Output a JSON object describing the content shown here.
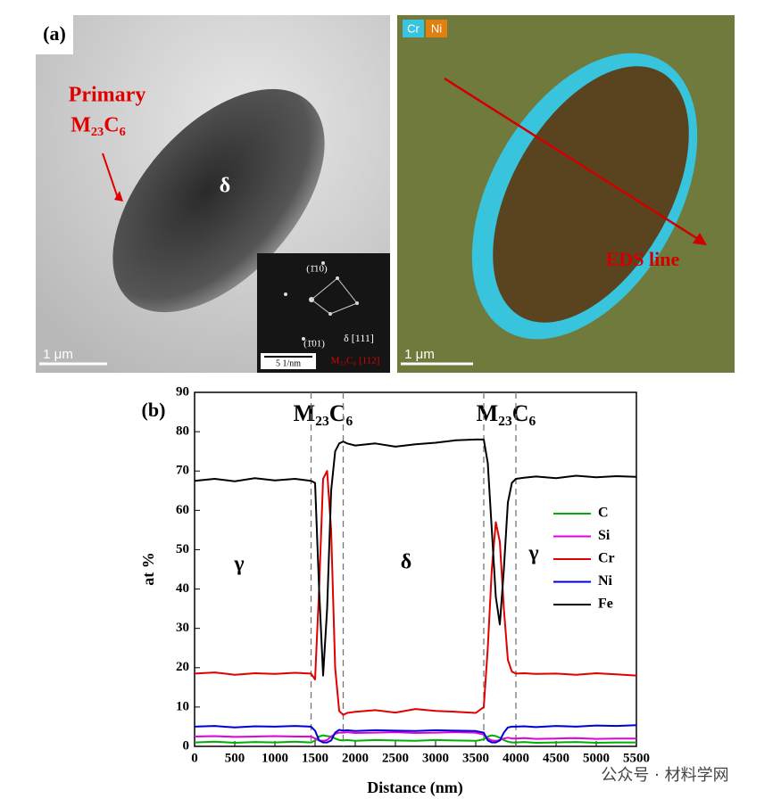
{
  "panel_a": {
    "label": "(a)",
    "left_image": {
      "annotation_line1": "Primary",
      "annotation_line2": "M₂₃C₆",
      "phase": "δ",
      "scale_bar": "1 μm",
      "inset": {
        "spot_top": "(1̄10)",
        "spot_bottom": "(1̄01)",
        "zone_delta": "δ [111]",
        "zone_carbide": "M₂₃C₆ [112]",
        "scale_bar": "5 1/nm"
      }
    },
    "right_image": {
      "legend_cr": "Cr",
      "legend_ni": "Ni",
      "annotation": "EDS line",
      "scale_bar": "1 μm"
    }
  },
  "chart_data": {
    "type": "line",
    "panel_label": "(b)",
    "x_label": "Distance (nm)",
    "y_label": "at %",
    "annotations": [
      "M₂₃C₆",
      "M₂₃C₆",
      "γ",
      "δ",
      "γ"
    ],
    "phase_boundaries": [
      1450,
      1850,
      3600,
      4000
    ],
    "xlim": [
      0,
      5500
    ],
    "ylim": [
      0,
      90
    ],
    "xticks": [
      0,
      500,
      1000,
      1500,
      2000,
      2500,
      3000,
      3500,
      4000,
      4500,
      5000,
      5500
    ],
    "yticks": [
      0,
      10,
      20,
      30,
      40,
      50,
      60,
      70,
      80,
      90
    ],
    "x": [
      0,
      250,
      500,
      750,
      1000,
      1250,
      1450,
      1500,
      1550,
      1600,
      1650,
      1700,
      1750,
      1800,
      1850,
      1900,
      2000,
      2250,
      2500,
      2750,
      3000,
      3250,
      3500,
      3600,
      3650,
      3700,
      3750,
      3800,
      3850,
      3900,
      3950,
      4000,
      4100,
      4250,
      4500,
      4750,
      5000,
      5250,
      5500
    ],
    "series": [
      {
        "name": "C",
        "color": "#00b000",
        "values": [
          1,
          1.2,
          0.9,
          1.1,
          1,
          1.2,
          1,
          1.5,
          2.5,
          2.8,
          2.6,
          2.5,
          2,
          1.6,
          1.5,
          1.6,
          1.4,
          1.6,
          1.5,
          1.4,
          1.6,
          1.5,
          1.4,
          1.8,
          2.5,
          2.8,
          2.6,
          2.2,
          1.6,
          1.2,
          1,
          1,
          1.1,
          0.9,
          1,
          1.1,
          0.9,
          1,
          1
        ]
      },
      {
        "name": "Si",
        "color": "#e000e0",
        "values": [
          2.5,
          2.6,
          2.4,
          2.5,
          2.6,
          2.5,
          2.5,
          2,
          1.5,
          1.4,
          1.6,
          2.5,
          3.2,
          3.5,
          3.5,
          3.6,
          3.4,
          3.5,
          3.6,
          3.4,
          3.5,
          3.6,
          3.5,
          3,
          2,
          1.5,
          1.4,
          1.6,
          2,
          2.2,
          2,
          2,
          2.1,
          1.9,
          2,
          2.1,
          1.9,
          2,
          2
        ]
      },
      {
        "name": "Cr",
        "color": "#e00000",
        "values": [
          18.5,
          18.8,
          18.2,
          18.6,
          18.4,
          18.7,
          18.5,
          17,
          40,
          68,
          70,
          55,
          20,
          9,
          8,
          8.5,
          8.8,
          9.2,
          8.6,
          9.5,
          9,
          8.8,
          8.5,
          10,
          25,
          45,
          57,
          52,
          35,
          22,
          19,
          18.5,
          18.6,
          18.4,
          18.5,
          18.2,
          18.6,
          18.3,
          18
        ]
      },
      {
        "name": "Ni",
        "color": "#0000d0",
        "values": [
          5,
          5.2,
          4.8,
          5.1,
          5,
          5.2,
          5,
          4,
          1.5,
          1,
          1,
          1.5,
          3.5,
          4.2,
          4,
          4.1,
          3.9,
          4.1,
          4,
          3.9,
          4.1,
          4,
          3.9,
          3.5,
          1.5,
          1,
          1,
          1.5,
          3.5,
          4.8,
          5,
          5,
          5.1,
          4.9,
          5.2,
          5,
          5.3,
          5.2,
          5.4
        ]
      },
      {
        "name": "Fe",
        "color": "#000000",
        "values": [
          67.5,
          68,
          67.4,
          68.2,
          67.6,
          68,
          67.5,
          67,
          40,
          18,
          35,
          65,
          75,
          77,
          77.5,
          77,
          76.5,
          77,
          76.2,
          76.8,
          77.2,
          77.8,
          78,
          78,
          72,
          55,
          38,
          31,
          45,
          62,
          67,
          68,
          68.3,
          68.6,
          68.2,
          68.8,
          68.4,
          68.7,
          68.5
        ]
      }
    ],
    "legend_position": "center right"
  },
  "watermark": "公众号 · 材料学网"
}
